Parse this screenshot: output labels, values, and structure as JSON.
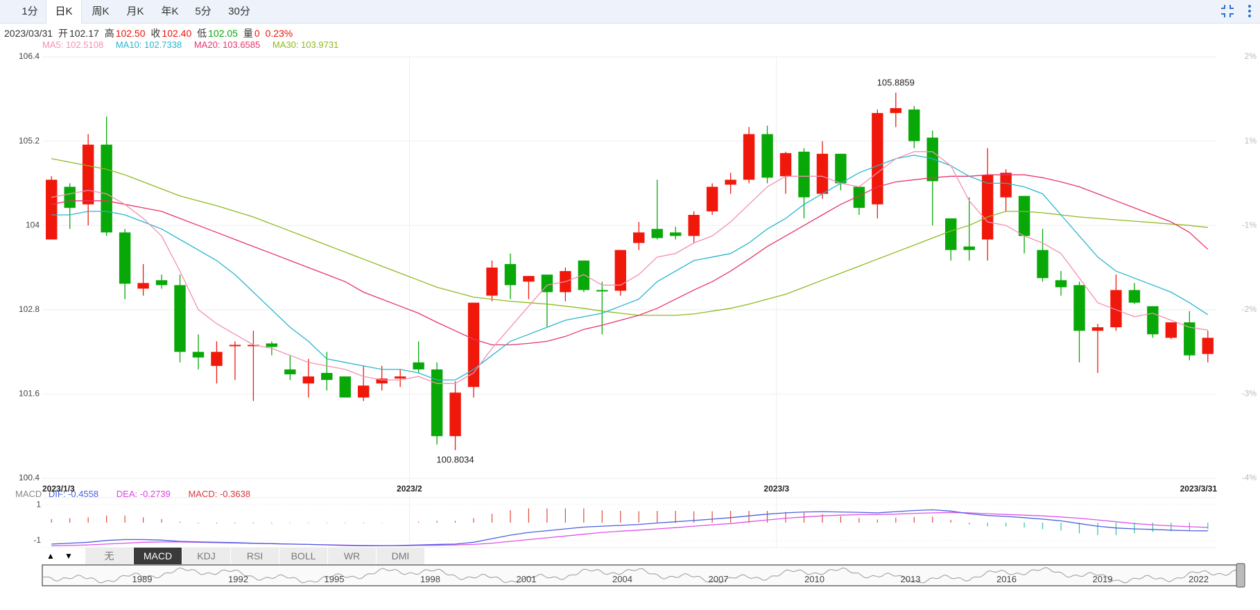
{
  "tabs": [
    {
      "label": "1分",
      "active": false
    },
    {
      "label": "日K",
      "active": true
    },
    {
      "label": "周K",
      "active": false
    },
    {
      "label": "月K",
      "active": false
    },
    {
      "label": "年K",
      "active": false
    },
    {
      "label": "5分",
      "active": false
    },
    {
      "label": "30分",
      "active": false
    }
  ],
  "toolbar_icons": [
    "collapse-icon",
    "more-vertical-icon"
  ],
  "info": {
    "date": "2023/03/31",
    "open_label": "开",
    "open": "102.17",
    "high_label": "高",
    "high": "102.50",
    "close_label": "收",
    "close": "102.40",
    "low_label": "低",
    "low": "102.05",
    "vol_label": "量",
    "vol": "0",
    "change": "0.23%"
  },
  "ma": [
    {
      "label": "MA5: 102.5108",
      "color": "#f48fb1"
    },
    {
      "label": "MA10: 102.7338",
      "color": "#26b6d0"
    },
    {
      "label": "MA20: 103.6585",
      "color": "#e8336b"
    },
    {
      "label": "MA30: 103.9731",
      "color": "#8dba1e"
    }
  ],
  "macd_info": {
    "title": "MACD",
    "dif": "DIF: -0.4558",
    "dea": "DEA: -0.2739",
    "macd": "MACD: -0.3638"
  },
  "indicators": {
    "up": "▲",
    "down": "▼",
    "buttons": [
      {
        "label": "无",
        "active": false
      },
      {
        "label": "MACD",
        "active": true
      },
      {
        "label": "KDJ",
        "active": false
      },
      {
        "label": "RSI",
        "active": false
      },
      {
        "label": "BOLL",
        "active": false
      },
      {
        "label": "WR",
        "active": false
      },
      {
        "label": "DMI",
        "active": false
      }
    ]
  },
  "colors": {
    "up": "#f0180a",
    "down": "#08a808",
    "grid": "#eeeeee"
  },
  "chart_data": {
    "type": "candlestick",
    "y_ticks": [
      "106.4",
      "105.2",
      "104",
      "102.8",
      "101.6",
      "100.4"
    ],
    "ylim": [
      100.4,
      106.4
    ],
    "pct_ticks": [
      "2%",
      "1%",
      "-1%",
      "-2%",
      "-3%",
      "-4%"
    ],
    "x_labels": [
      "2023/1/3",
      "2023/2",
      "2023/3",
      "2023/3/31"
    ],
    "annotations": {
      "max": "105.8859",
      "min": "100.8034"
    },
    "candles": [
      {
        "o": 103.8,
        "c": 104.65,
        "h": 104.7,
        "l": 103.8
      },
      {
        "o": 104.55,
        "c": 104.25,
        "h": 104.6,
        "l": 103.95
      },
      {
        "o": 104.3,
        "c": 105.15,
        "h": 105.3,
        "l": 104.0
      },
      {
        "o": 105.15,
        "c": 103.9,
        "h": 105.55,
        "l": 103.85
      },
      {
        "o": 103.9,
        "c": 103.17,
        "h": 103.95,
        "l": 102.95
      },
      {
        "o": 103.1,
        "c": 103.18,
        "h": 103.45,
        "l": 103.0
      },
      {
        "o": 103.22,
        "c": 103.15,
        "h": 103.3,
        "l": 103.1
      },
      {
        "o": 103.15,
        "c": 102.2,
        "h": 103.3,
        "l": 102.05
      },
      {
        "o": 102.2,
        "c": 102.12,
        "h": 102.45,
        "l": 101.95
      },
      {
        "o": 102.0,
        "c": 102.2,
        "h": 102.35,
        "l": 101.75
      },
      {
        "o": 102.3,
        "c": 102.3,
        "h": 102.35,
        "l": 101.8
      },
      {
        "o": 102.3,
        "c": 102.3,
        "h": 102.5,
        "l": 101.5
      },
      {
        "o": 102.32,
        "c": 102.27,
        "h": 102.35,
        "l": 102.15
      },
      {
        "o": 101.95,
        "c": 101.88,
        "h": 102.15,
        "l": 101.8
      },
      {
        "o": 101.75,
        "c": 101.85,
        "h": 102.1,
        "l": 101.55
      },
      {
        "o": 101.9,
        "c": 101.8,
        "h": 102.2,
        "l": 101.65
      },
      {
        "o": 101.85,
        "c": 101.55,
        "h": 101.85,
        "l": 101.55
      },
      {
        "o": 101.55,
        "c": 101.72,
        "h": 102.0,
        "l": 101.5
      },
      {
        "o": 101.75,
        "c": 101.82,
        "h": 102.0,
        "l": 101.65
      },
      {
        "o": 101.82,
        "c": 101.85,
        "h": 101.95,
        "l": 101.7
      },
      {
        "o": 102.05,
        "c": 101.95,
        "h": 102.35,
        "l": 101.9
      },
      {
        "o": 101.95,
        "c": 101.0,
        "h": 102.05,
        "l": 100.88
      },
      {
        "o": 101.0,
        "c": 101.62,
        "h": 101.78,
        "l": 100.8
      },
      {
        "o": 101.7,
        "c": 102.9,
        "h": 102.9,
        "l": 101.55
      },
      {
        "o": 103.0,
        "c": 103.4,
        "h": 103.5,
        "l": 102.92
      },
      {
        "o": 103.45,
        "c": 103.15,
        "h": 103.6,
        "l": 102.95
      },
      {
        "o": 103.2,
        "c": 103.28,
        "h": 103.28,
        "l": 102.95
      },
      {
        "o": 103.3,
        "c": 103.05,
        "h": 103.3,
        "l": 102.55
      },
      {
        "o": 103.05,
        "c": 103.35,
        "h": 103.4,
        "l": 102.92
      },
      {
        "o": 103.5,
        "c": 103.08,
        "h": 103.5,
        "l": 103.05
      },
      {
        "o": 103.08,
        "c": 103.06,
        "h": 103.2,
        "l": 102.45
      },
      {
        "o": 103.07,
        "c": 103.65,
        "h": 103.65,
        "l": 103.0
      },
      {
        "o": 103.75,
        "c": 103.9,
        "h": 104.05,
        "l": 103.65
      },
      {
        "o": 103.95,
        "c": 103.82,
        "h": 104.65,
        "l": 103.8
      },
      {
        "o": 103.9,
        "c": 103.85,
        "h": 103.98,
        "l": 103.8
      },
      {
        "o": 103.85,
        "c": 104.15,
        "h": 104.2,
        "l": 103.75
      },
      {
        "o": 104.2,
        "c": 104.55,
        "h": 104.6,
        "l": 104.15
      },
      {
        "o": 104.58,
        "c": 104.65,
        "h": 104.75,
        "l": 104.45
      },
      {
        "o": 104.65,
        "c": 105.3,
        "h": 105.4,
        "l": 104.6
      },
      {
        "o": 105.3,
        "c": 104.68,
        "h": 105.42,
        "l": 104.6
      },
      {
        "o": 104.7,
        "c": 105.03,
        "h": 105.05,
        "l": 104.45
      },
      {
        "o": 105.05,
        "c": 104.4,
        "h": 105.1,
        "l": 104.1
      },
      {
        "o": 104.45,
        "c": 105.02,
        "h": 105.2,
        "l": 104.38
      },
      {
        "o": 105.02,
        "c": 104.6,
        "h": 105.02,
        "l": 104.5
      },
      {
        "o": 104.55,
        "c": 104.25,
        "h": 104.55,
        "l": 104.15
      },
      {
        "o": 104.3,
        "c": 105.6,
        "h": 105.65,
        "l": 104.1
      },
      {
        "o": 105.6,
        "c": 105.67,
        "h": 105.89,
        "l": 105.4
      },
      {
        "o": 105.65,
        "c": 105.2,
        "h": 105.7,
        "l": 105.1
      },
      {
        "o": 105.25,
        "c": 104.63,
        "h": 105.35,
        "l": 104.0
      },
      {
        "o": 104.1,
        "c": 103.65,
        "h": 104.1,
        "l": 103.5
      },
      {
        "o": 103.7,
        "c": 103.65,
        "h": 104.4,
        "l": 103.5
      },
      {
        "o": 103.8,
        "c": 104.72,
        "h": 105.1,
        "l": 103.5
      },
      {
        "o": 104.4,
        "c": 104.75,
        "h": 104.8,
        "l": 104.2
      },
      {
        "o": 104.42,
        "c": 103.85,
        "h": 104.42,
        "l": 103.6
      },
      {
        "o": 103.65,
        "c": 103.25,
        "h": 103.95,
        "l": 103.2
      },
      {
        "o": 103.22,
        "c": 103.12,
        "h": 103.35,
        "l": 103.0
      },
      {
        "o": 103.15,
        "c": 102.5,
        "h": 103.2,
        "l": 102.05
      },
      {
        "o": 102.5,
        "c": 102.55,
        "h": 102.6,
        "l": 101.9
      },
      {
        "o": 102.55,
        "c": 103.08,
        "h": 103.3,
        "l": 102.5
      },
      {
        "o": 103.08,
        "c": 102.9,
        "h": 103.18,
        "l": 102.88
      },
      {
        "o": 102.85,
        "c": 102.45,
        "h": 102.85,
        "l": 102.4
      },
      {
        "o": 102.4,
        "c": 102.62,
        "h": 102.62,
        "l": 102.38
      },
      {
        "o": 102.62,
        "c": 102.15,
        "h": 102.78,
        "l": 102.08
      },
      {
        "o": 102.17,
        "c": 102.4,
        "h": 102.5,
        "l": 102.05
      }
    ],
    "ma5": [
      104.4,
      104.45,
      104.5,
      104.45,
      104.3,
      104.1,
      103.85,
      103.35,
      102.8,
      102.6,
      102.45,
      102.3,
      102.25,
      102.15,
      102.05,
      102.0,
      101.95,
      101.85,
      101.8,
      101.8,
      101.85,
      101.75,
      101.75,
      101.9,
      102.25,
      102.55,
      102.85,
      103.15,
      103.2,
      103.3,
      103.15,
      103.15,
      103.3,
      103.55,
      103.6,
      103.75,
      103.85,
      104.05,
      104.3,
      104.55,
      104.7,
      104.7,
      104.7,
      104.6,
      104.55,
      104.75,
      104.95,
      105.05,
      105.05,
      104.85,
      104.35,
      104.05,
      104.0,
      103.85,
      103.75,
      103.6,
      103.25,
      102.9,
      102.8,
      102.7,
      102.75,
      102.65,
      102.55,
      102.51
    ],
    "ma10": [
      104.15,
      104.15,
      104.2,
      104.2,
      104.15,
      104.05,
      103.95,
      103.8,
      103.65,
      103.5,
      103.3,
      103.05,
      102.8,
      102.55,
      102.35,
      102.1,
      102.05,
      102.0,
      101.95,
      101.95,
      101.9,
      101.8,
      101.8,
      101.95,
      102.15,
      102.35,
      102.45,
      102.55,
      102.65,
      102.7,
      102.75,
      102.85,
      102.95,
      103.2,
      103.35,
      103.5,
      103.55,
      103.6,
      103.75,
      103.95,
      104.1,
      104.3,
      104.45,
      104.6,
      104.75,
      104.85,
      104.95,
      105.0,
      104.95,
      104.85,
      104.7,
      104.6,
      104.6,
      104.55,
      104.45,
      104.15,
      103.85,
      103.55,
      103.35,
      103.25,
      103.15,
      103.05,
      102.9,
      102.73
    ],
    "ma20": [
      104.3,
      104.35,
      104.35,
      104.35,
      104.3,
      104.25,
      104.2,
      104.1,
      104.0,
      103.9,
      103.8,
      103.7,
      103.6,
      103.5,
      103.4,
      103.3,
      103.2,
      103.05,
      102.95,
      102.85,
      102.75,
      102.62,
      102.5,
      102.38,
      102.3,
      102.3,
      102.32,
      102.35,
      102.42,
      102.52,
      102.58,
      102.65,
      102.72,
      102.82,
      102.95,
      103.08,
      103.2,
      103.35,
      103.52,
      103.7,
      103.85,
      104.0,
      104.15,
      104.3,
      104.42,
      104.55,
      104.62,
      104.65,
      104.68,
      104.7,
      104.7,
      104.72,
      104.72,
      104.72,
      104.68,
      104.62,
      104.55,
      104.45,
      104.35,
      104.25,
      104.15,
      104.05,
      103.9,
      103.66
    ],
    "ma30": [
      104.95,
      104.9,
      104.85,
      104.8,
      104.72,
      104.62,
      104.52,
      104.42,
      104.35,
      104.28,
      104.2,
      104.12,
      104.02,
      103.92,
      103.82,
      103.72,
      103.62,
      103.52,
      103.42,
      103.32,
      103.22,
      103.12,
      103.05,
      102.98,
      102.95,
      102.92,
      102.9,
      102.88,
      102.85,
      102.82,
      102.78,
      102.75,
      102.72,
      102.72,
      102.72,
      102.74,
      102.78,
      102.82,
      102.88,
      102.95,
      103.02,
      103.12,
      103.22,
      103.32,
      103.42,
      103.52,
      103.62,
      103.72,
      103.82,
      103.92,
      104.0,
      104.12,
      104.2,
      104.2,
      104.18,
      104.15,
      104.12,
      104.1,
      104.08,
      104.06,
      104.04,
      104.02,
      104.0,
      103.97
    ],
    "macd_ylim": [
      -1.4,
      1.4
    ],
    "macd_ticks": [
      "1",
      "-1"
    ],
    "dif": [
      -1.2,
      -1.15,
      -1.1,
      -1.0,
      -0.95,
      -0.95,
      -0.98,
      -1.05,
      -1.08,
      -1.1,
      -1.12,
      -1.15,
      -1.18,
      -1.2,
      -1.22,
      -1.25,
      -1.28,
      -1.3,
      -1.3,
      -1.28,
      -1.25,
      -1.22,
      -1.2,
      -1.1,
      -0.9,
      -0.7,
      -0.55,
      -0.45,
      -0.35,
      -0.25,
      -0.2,
      -0.15,
      -0.1,
      -0.02,
      0.05,
      0.12,
      0.2,
      0.28,
      0.38,
      0.48,
      0.55,
      0.6,
      0.62,
      0.6,
      0.58,
      0.55,
      0.62,
      0.68,
      0.72,
      0.65,
      0.5,
      0.4,
      0.35,
      0.28,
      0.2,
      0.1,
      -0.05,
      -0.2,
      -0.3,
      -0.35,
      -0.38,
      -0.42,
      -0.45,
      -0.46
    ],
    "dea": [
      -1.3,
      -1.28,
      -1.25,
      -1.2,
      -1.15,
      -1.1,
      -1.08,
      -1.08,
      -1.1,
      -1.12,
      -1.14,
      -1.16,
      -1.18,
      -1.2,
      -1.22,
      -1.24,
      -1.26,
      -1.28,
      -1.29,
      -1.29,
      -1.28,
      -1.27,
      -1.25,
      -1.22,
      -1.15,
      -1.05,
      -0.95,
      -0.85,
      -0.75,
      -0.65,
      -0.55,
      -0.48,
      -0.42,
      -0.35,
      -0.28,
      -0.2,
      -0.12,
      -0.05,
      0.05,
      0.15,
      0.25,
      0.32,
      0.38,
      0.42,
      0.45,
      0.46,
      0.48,
      0.52,
      0.55,
      0.57,
      0.55,
      0.5,
      0.46,
      0.42,
      0.38,
      0.32,
      0.25,
      0.15,
      0.05,
      -0.05,
      -0.12,
      -0.18,
      -0.23,
      -0.27
    ],
    "macd_hist": [
      0.2,
      0.25,
      0.3,
      0.4,
      0.4,
      0.3,
      0.2,
      0.05,
      -0.05,
      -0.05,
      -0.05,
      -0.05,
      -0.05,
      -0.03,
      -0.03,
      -0.03,
      -0.03,
      -0.04,
      -0.02,
      0.01,
      0.05,
      0.1,
      0.1,
      0.25,
      0.5,
      0.7,
      0.8,
      0.8,
      0.8,
      0.8,
      0.7,
      0.66,
      0.64,
      0.66,
      0.66,
      0.64,
      0.64,
      0.66,
      0.66,
      0.66,
      0.6,
      0.56,
      0.48,
      0.36,
      0.26,
      0.18,
      0.28,
      0.32,
      0.34,
      0.16,
      -0.1,
      -0.2,
      -0.22,
      -0.28,
      -0.36,
      -0.44,
      -0.6,
      -0.7,
      -0.7,
      -0.6,
      -0.52,
      -0.48,
      -0.44,
      -0.36
    ],
    "overview_years": [
      "1989",
      "1992",
      "1995",
      "1998",
      "2001",
      "2004",
      "2007",
      "2010",
      "2013",
      "2016",
      "2019",
      "2022"
    ]
  }
}
